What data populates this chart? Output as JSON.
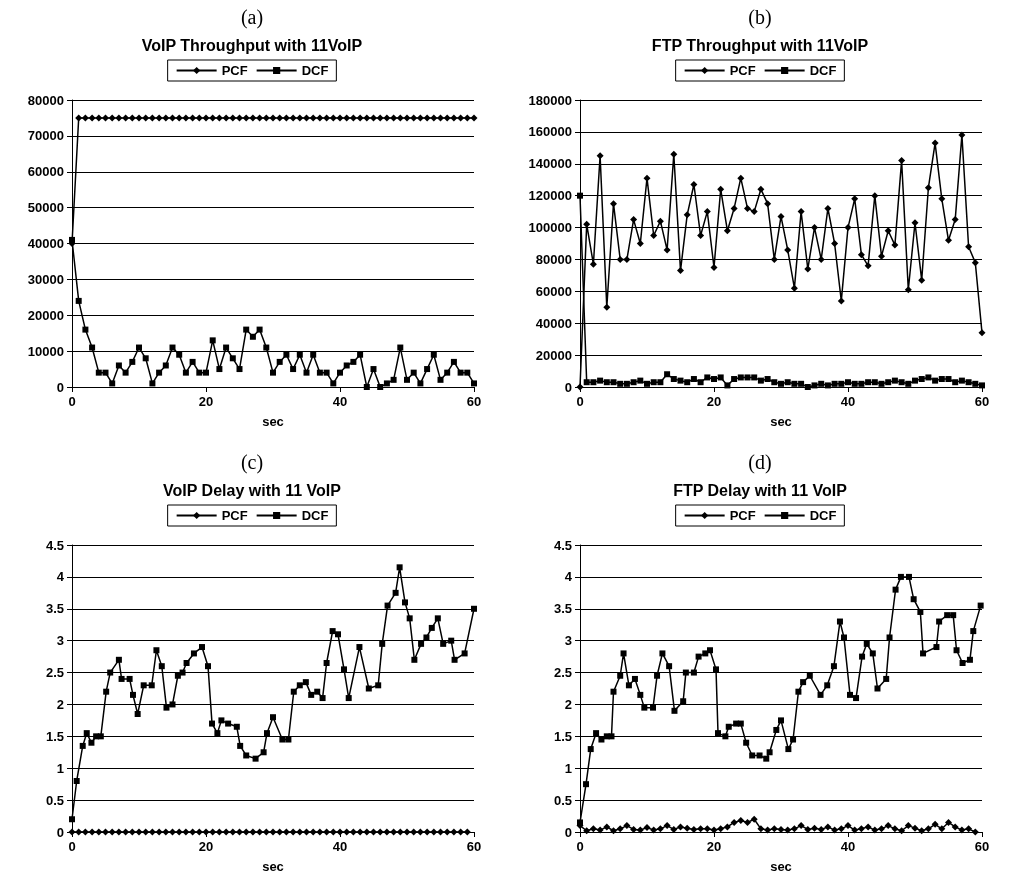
{
  "chart_data": [
    {
      "type": "line",
      "subtitle": "(a)",
      "title": "VoIP Throughput with 11VoIP",
      "xlabel": "sec",
      "legend": "top",
      "grid": "y",
      "xlim": [
        0,
        60
      ],
      "xticks": [
        0,
        20,
        40,
        60
      ],
      "ylim": [
        0,
        80000
      ],
      "yticks": [
        0,
        10000,
        20000,
        30000,
        40000,
        50000,
        60000,
        70000,
        80000
      ],
      "x": [
        0,
        1,
        2,
        3,
        4,
        5,
        6,
        7,
        8,
        9,
        10,
        11,
        12,
        13,
        14,
        15,
        16,
        17,
        18,
        19,
        20,
        21,
        22,
        23,
        24,
        25,
        26,
        27,
        28,
        29,
        30,
        31,
        32,
        33,
        34,
        35,
        36,
        37,
        38,
        39,
        40,
        41,
        42,
        43,
        44,
        45,
        46,
        47,
        48,
        49,
        50,
        51,
        52,
        53,
        54,
        55,
        56,
        57,
        58,
        59,
        60
      ],
      "series": [
        {
          "name": "PCF",
          "color": "#000000",
          "marker": "diamond",
          "values": [
            40000,
            75000,
            75000,
            75000,
            75000,
            75000,
            75000,
            75000,
            75000,
            75000,
            75000,
            75000,
            75000,
            75000,
            75000,
            75000,
            75000,
            75000,
            75000,
            75000,
            75000,
            75000,
            75000,
            75000,
            75000,
            75000,
            75000,
            75000,
            75000,
            75000,
            75000,
            75000,
            75000,
            75000,
            75000,
            75000,
            75000,
            75000,
            75000,
            75000,
            75000,
            75000,
            75000,
            75000,
            75000,
            75000,
            75000,
            75000,
            75000,
            75000,
            75000,
            75000,
            75000,
            75000,
            75000,
            75000,
            75000,
            75000,
            75000,
            75000,
            75000
          ]
        },
        {
          "name": "DCF",
          "color": "#000000",
          "marker": "square",
          "values": [
            41000,
            24000,
            16000,
            11000,
            4000,
            4000,
            1000,
            6000,
            4000,
            7000,
            11000,
            8000,
            1000,
            4000,
            6000,
            11000,
            9000,
            4000,
            7000,
            4000,
            4000,
            13000,
            5000,
            11000,
            8000,
            5000,
            16000,
            14000,
            16000,
            11000,
            4000,
            7000,
            9000,
            5000,
            9000,
            4000,
            9000,
            4000,
            4000,
            1000,
            4000,
            6000,
            7000,
            9000,
            0,
            5000,
            0,
            1000,
            2000,
            11000,
            2000,
            4000,
            1000,
            5000,
            9000,
            2000,
            4000,
            7000,
            4000,
            4000,
            1000
          ]
        }
      ]
    },
    {
      "type": "line",
      "subtitle": "(b)",
      "title": "FTP Throughput with 11VoIP",
      "xlabel": "sec",
      "legend": "top",
      "grid": "y",
      "xlim": [
        0,
        60
      ],
      "xticks": [
        0,
        20,
        40,
        60
      ],
      "ylim": [
        0,
        180000
      ],
      "yticks": [
        0,
        20000,
        40000,
        60000,
        80000,
        100000,
        120000,
        140000,
        160000,
        180000
      ],
      "x": [
        0,
        1,
        2,
        3,
        4,
        5,
        6,
        7,
        8,
        9,
        10,
        11,
        12,
        13,
        14,
        15,
        16,
        17,
        18,
        19,
        20,
        21,
        22,
        23,
        24,
        25,
        26,
        27,
        28,
        29,
        30,
        31,
        32,
        33,
        34,
        35,
        36,
        37,
        38,
        39,
        40,
        41,
        42,
        43,
        44,
        45,
        46,
        47,
        48,
        49,
        50,
        51,
        52,
        53,
        54,
        55,
        56,
        57,
        58,
        59,
        60
      ],
      "series": [
        {
          "name": "PCF",
          "color": "#000000",
          "marker": "diamond",
          "values": [
            0,
            102000,
            77000,
            145000,
            50000,
            115000,
            80000,
            80000,
            105000,
            90000,
            131000,
            95000,
            104000,
            86000,
            146000,
            73000,
            108000,
            127000,
            95000,
            110000,
            75000,
            124000,
            98000,
            112000,
            131000,
            112000,
            110000,
            124000,
            115000,
            80000,
            107000,
            86000,
            62000,
            110000,
            74000,
            100000,
            80000,
            112000,
            90000,
            54000,
            100000,
            118000,
            83000,
            76000,
            120000,
            82000,
            98000,
            89000,
            142000,
            61000,
            103000,
            67000,
            125000,
            153000,
            118000,
            92000,
            105000,
            158000,
            88000,
            78000,
            34000
          ]
        },
        {
          "name": "DCF",
          "color": "#000000",
          "marker": "square",
          "values": [
            120000,
            3000,
            3000,
            4000,
            3000,
            3000,
            2000,
            2000,
            3000,
            4000,
            2000,
            3000,
            3000,
            8000,
            5000,
            4000,
            3000,
            5000,
            3000,
            6000,
            5000,
            6000,
            1000,
            5000,
            6000,
            6000,
            6000,
            4000,
            5000,
            3000,
            2000,
            3000,
            2000,
            2000,
            0,
            1000,
            2000,
            1000,
            2000,
            2000,
            3000,
            2000,
            2000,
            3000,
            3000,
            2000,
            3000,
            4000,
            3000,
            2000,
            4000,
            5000,
            6000,
            4000,
            5000,
            5000,
            3000,
            4000,
            3000,
            2000,
            1000
          ]
        }
      ]
    },
    {
      "type": "line",
      "subtitle": "(c)",
      "title": "VoIP Delay with 11 VoIP",
      "xlabel": "sec",
      "legend": "top",
      "grid": "y",
      "xlim": [
        0,
        60
      ],
      "xticks": [
        0,
        20,
        40,
        60
      ],
      "ylim": [
        0,
        4.5
      ],
      "yticks": [
        0,
        0.5,
        1,
        1.5,
        2,
        2.5,
        3,
        3.5,
        4,
        4.5
      ],
      "x": [
        0,
        1,
        2,
        3,
        4,
        5,
        6,
        7,
        8,
        9,
        10,
        11,
        12,
        13,
        14,
        15,
        16,
        17,
        18,
        19,
        20,
        21,
        22,
        23,
        24,
        25,
        26,
        27,
        28,
        29,
        30,
        31,
        32,
        33,
        34,
        35,
        36,
        37,
        38,
        39,
        40,
        41,
        42,
        43,
        44,
        45,
        46,
        47,
        48,
        49,
        50,
        51,
        52,
        53,
        54,
        55,
        56,
        57,
        58,
        59
      ],
      "series": [
        {
          "name": "PCF",
          "color": "#000000",
          "marker": "diamond",
          "values": [
            0,
            0,
            0,
            0,
            0,
            0,
            0,
            0,
            0,
            0,
            0,
            0,
            0,
            0,
            0,
            0,
            0,
            0,
            0,
            0,
            0,
            0,
            0,
            0,
            0,
            0,
            0,
            0,
            0,
            0,
            0,
            0,
            0,
            0,
            0,
            0,
            0,
            0,
            0,
            0,
            0,
            0,
            0,
            0,
            0,
            0,
            0,
            0,
            0,
            0,
            0,
            0,
            0,
            0,
            0,
            0,
            0,
            0,
            0,
            0
          ]
        },
        {
          "name": "DCF",
          "color": "#000000",
          "marker": "square",
          "x": [
            0,
            0.7,
            1.6,
            2.2,
            2.9,
            3.6,
            4.3,
            5.1,
            5.7,
            7.0,
            7.4,
            8.6,
            9.1,
            9.8,
            10.7,
            11.9,
            12.6,
            13.4,
            14.1,
            15.0,
            15.8,
            16.5,
            17.1,
            18.2,
            19.4,
            20.3,
            20.9,
            21.7,
            22.3,
            23.3,
            24.6,
            25.1,
            26.0,
            27.4,
            28.6,
            29.1,
            30.0,
            31.4,
            32.3,
            33.1,
            34.0,
            34.9,
            35.7,
            36.6,
            37.4,
            38.0,
            38.9,
            39.7,
            40.6,
            41.3,
            42.9,
            44.3,
            45.7,
            46.3,
            47.1,
            48.3,
            48.9,
            49.7,
            50.4,
            51.1,
            52.1,
            52.9,
            53.7,
            54.6,
            55.4,
            56.6,
            57.1,
            58.6,
            60
          ],
          "values": [
            0.2,
            0.8,
            1.35,
            1.55,
            1.4,
            1.5,
            1.5,
            2.2,
            2.5,
            2.7,
            2.4,
            2.4,
            2.15,
            1.85,
            2.3,
            2.3,
            2.85,
            2.6,
            1.95,
            2.0,
            2.45,
            2.5,
            2.65,
            2.8,
            2.9,
            2.6,
            1.7,
            1.55,
            1.75,
            1.7,
            1.65,
            1.35,
            1.2,
            1.15,
            1.25,
            1.55,
            1.8,
            1.45,
            1.45,
            2.2,
            2.3,
            2.35,
            2.15,
            2.2,
            2.1,
            2.65,
            3.15,
            3.1,
            2.55,
            2.1,
            2.9,
            2.25,
            2.3,
            2.95,
            3.55,
            3.75,
            4.15,
            3.6,
            3.35,
            2.7,
            2.95,
            3.05,
            3.2,
            3.35,
            2.95,
            3.0,
            2.7,
            2.8,
            3.5
          ]
        }
      ]
    },
    {
      "type": "line",
      "subtitle": "(d)",
      "title": "FTP Delay with 11 VoIP",
      "xlabel": "sec",
      "legend": "top",
      "grid": "y",
      "xlim": [
        0,
        60
      ],
      "xticks": [
        0,
        20,
        40,
        60
      ],
      "ylim": [
        0,
        4.5
      ],
      "yticks": [
        0,
        0.5,
        1,
        1.5,
        2,
        2.5,
        3,
        3.5,
        4,
        4.5
      ],
      "x": [
        0,
        1,
        2,
        3,
        4,
        5,
        6,
        7,
        8,
        9,
        10,
        11,
        12,
        13,
        14,
        15,
        16,
        17,
        18,
        19,
        20,
        21,
        22,
        23,
        24,
        25,
        26,
        27,
        28,
        29,
        30,
        31,
        32,
        33,
        34,
        35,
        36,
        37,
        38,
        39,
        40,
        41,
        42,
        43,
        44,
        45,
        46,
        47,
        48,
        49,
        50,
        51,
        52,
        53,
        54,
        55,
        56,
        57,
        58,
        59
      ],
      "series": [
        {
          "name": "PCF",
          "color": "#000000",
          "marker": "diamond",
          "values": [
            0.1,
            0.02,
            0.05,
            0.03,
            0.08,
            0.02,
            0.05,
            0.1,
            0.04,
            0.03,
            0.07,
            0.03,
            0.05,
            0.1,
            0.04,
            0.08,
            0.06,
            0.04,
            0.05,
            0.05,
            0.03,
            0.05,
            0.08,
            0.15,
            0.18,
            0.15,
            0.2,
            0.05,
            0.03,
            0.05,
            0.04,
            0.03,
            0.05,
            0.1,
            0.04,
            0.06,
            0.04,
            0.08,
            0.03,
            0.05,
            0.1,
            0.03,
            0.05,
            0.08,
            0.03,
            0.05,
            0.1,
            0.05,
            0.02,
            0.1,
            0.06,
            0.02,
            0.05,
            0.12,
            0.05,
            0.15,
            0.08,
            0.03,
            0.05,
            0
          ]
        },
        {
          "name": "DCF",
          "color": "#000000",
          "marker": "square",
          "x": [
            0,
            0.9,
            1.6,
            2.4,
            3.2,
            4.0,
            4.7,
            5.0,
            6.0,
            6.5,
            7.3,
            8.2,
            9.0,
            9.6,
            10.9,
            11.5,
            12.3,
            13.3,
            14.1,
            15.4,
            15.8,
            17.0,
            17.7,
            18.7,
            19.4,
            20.3,
            20.6,
            21.7,
            22.2,
            23.3,
            24.0,
            24.8,
            25.7,
            26.8,
            27.8,
            28.3,
            29.3,
            30.0,
            31.1,
            31.8,
            32.6,
            33.3,
            34.3,
            35.9,
            36.9,
            37.9,
            38.8,
            39.4,
            40.3,
            41.2,
            42.1,
            42.8,
            43.7,
            44.4,
            45.7,
            46.2,
            47.1,
            47.9,
            49.1,
            49.8,
            50.8,
            51.2,
            53.2,
            53.6,
            54.8,
            55.7,
            56.2,
            57.1,
            58.2,
            58.7,
            59.8
          ],
          "values": [
            0.15,
            0.75,
            1.3,
            1.55,
            1.45,
            1.5,
            1.5,
            2.2,
            2.45,
            2.8,
            2.3,
            2.4,
            2.15,
            1.95,
            1.95,
            2.45,
            2.8,
            2.6,
            1.9,
            2.05,
            2.5,
            2.5,
            2.75,
            2.8,
            2.85,
            2.55,
            1.55,
            1.5,
            1.65,
            1.7,
            1.7,
            1.4,
            1.2,
            1.2,
            1.15,
            1.25,
            1.6,
            1.75,
            1.3,
            1.45,
            2.2,
            2.35,
            2.45,
            2.15,
            2.3,
            2.6,
            3.3,
            3.05,
            2.15,
            2.1,
            2.75,
            2.95,
            2.8,
            2.25,
            2.4,
            3.05,
            3.8,
            4.0,
            4.0,
            3.65,
            3.45,
            2.8,
            2.9,
            3.3,
            3.4,
            3.4,
            2.85,
            2.65,
            2.7,
            3.15,
            3.55
          ]
        }
      ]
    }
  ]
}
